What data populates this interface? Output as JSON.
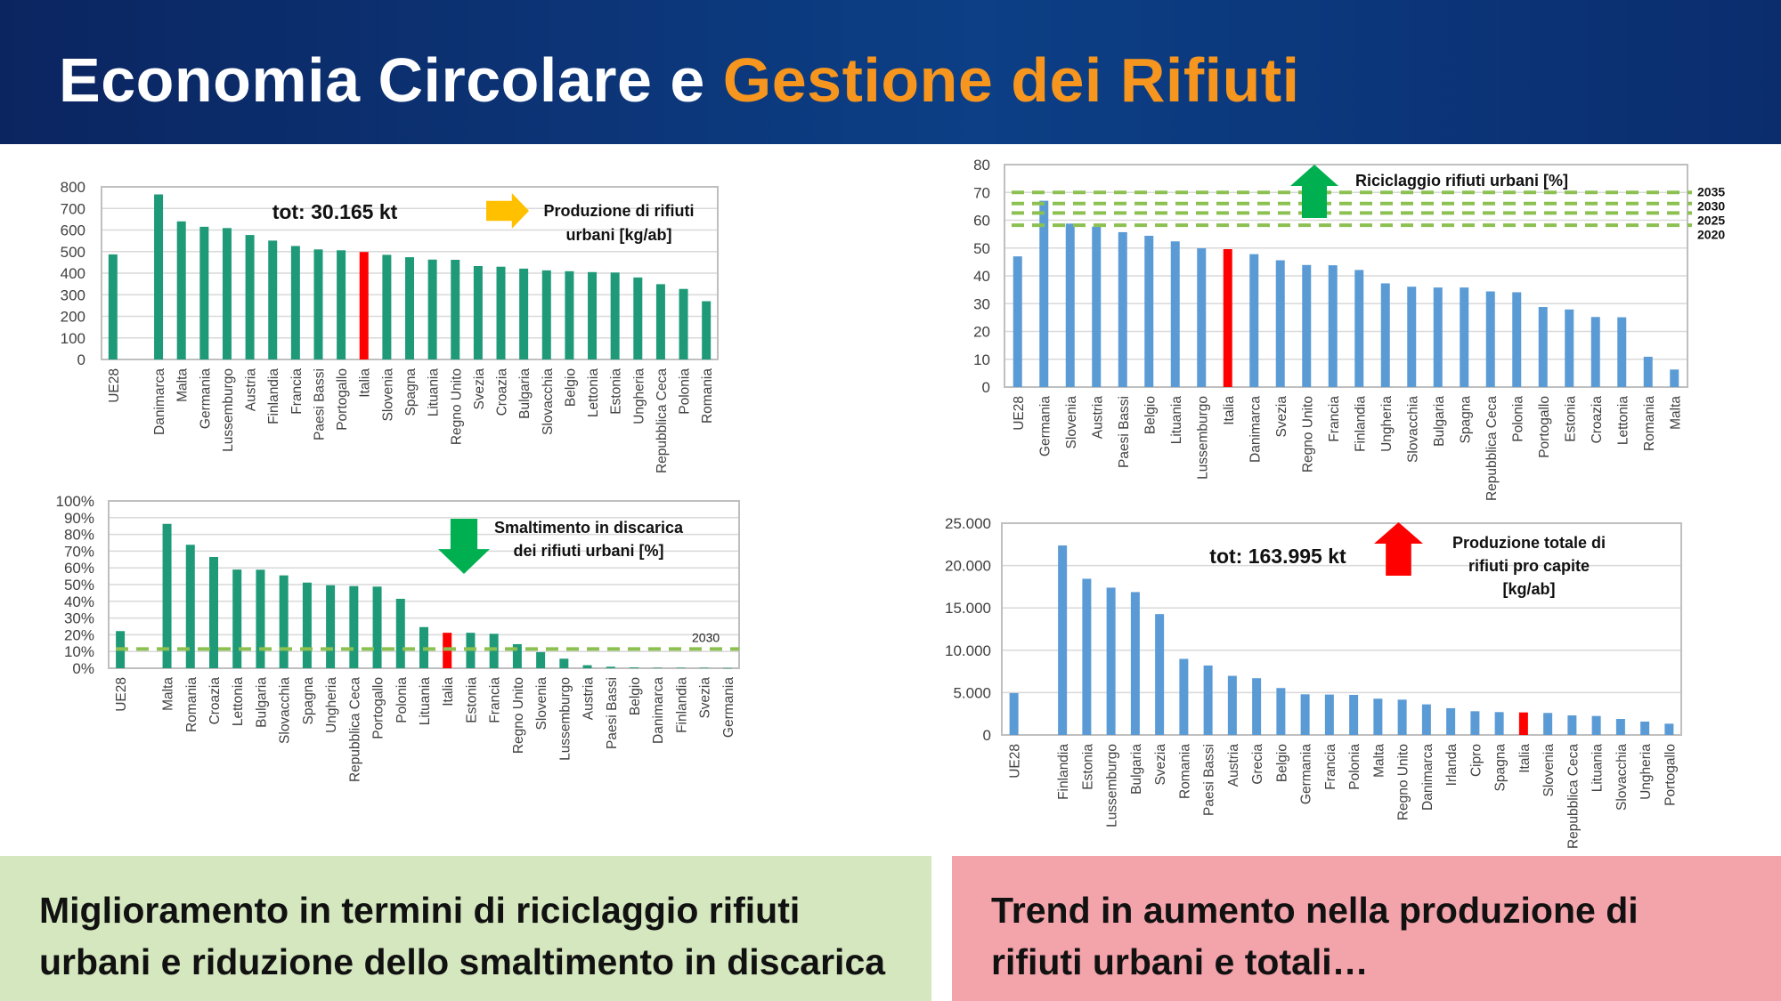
{
  "header": {
    "title_part1": "Economia Circolare e ",
    "title_part2": "Gestione dei Rifiuti",
    "accent_color": "#f7961e"
  },
  "bottom": {
    "left_lines": [
      "Miglioramento in termini di riciclaggio rifiuti",
      "urbani e riduzione dello smaltimento in discarica"
    ],
    "right_lines": [
      "Trend in aumento nella produzione di",
      "rifiuti urbani e totali…"
    ]
  },
  "chart_data": [
    {
      "type": "bar",
      "title": [
        "Produzione di rifiuti",
        "urbani [kg/ab]"
      ],
      "annotation": "tot: 30.165 kt",
      "arrow": {
        "direction": "right",
        "color": "#ffc000"
      },
      "ylim": [
        0,
        800
      ],
      "yticks": [
        "0",
        "100",
        "200",
        "300",
        "400",
        "500",
        "600",
        "700",
        "800"
      ],
      "bar_color": "#1f9a78",
      "highlight": "Italia",
      "highlight_color": "#ff0000",
      "categories": [
        "UE28",
        "Danimarca",
        "Malta",
        "Germania",
        "Lussemburgo",
        "Austria",
        "Finlandia",
        "Francia",
        "Paesi Bassi",
        "Portogallo",
        "Italia",
        "Slovenia",
        "Spagna",
        "Lituania",
        "Regno Unito",
        "Svezia",
        "Croazia",
        "Bulgaria",
        "Slovacchia",
        "Belgio",
        "Lettonia",
        "Estonia",
        "Ungheria",
        "Repubblica Ceca",
        "Polonia",
        "Romania"
      ],
      "values": [
        487,
        765,
        640,
        615,
        609,
        577,
        551,
        526,
        510,
        506,
        498,
        485,
        474,
        463,
        462,
        433,
        430,
        421,
        413,
        409,
        405,
        403,
        380,
        349,
        327,
        270
      ],
      "reference_lines": []
    },
    {
      "type": "bar",
      "title": [
        "Riciclaggio rifiuti urbani [%]"
      ],
      "annotation": "",
      "arrow": {
        "direction": "up",
        "color": "#00b050"
      },
      "ylim": [
        0,
        80
      ],
      "yticks": [
        "0",
        "10",
        "20",
        "30",
        "40",
        "50",
        "60",
        "70",
        "80"
      ],
      "bar_color": "#5b9bd5",
      "highlight": "Italia",
      "highlight_color": "#ff0000",
      "categories": [
        "UE28",
        "Germania",
        "Slovenia",
        "Austria",
        "Paesi Bassi",
        "Belgio",
        "Lituania",
        "Lussemburgo",
        "Italia",
        "Danimarca",
        "Svezia",
        "Regno Unito",
        "Francia",
        "Finlandia",
        "Ungheria",
        "Slovacchia",
        "Bulgaria",
        "Spagna",
        "Repubblica Ceca",
        "Polonia",
        "Portogallo",
        "Estonia",
        "Croazia",
        "Lettonia",
        "Romania",
        "Malta"
      ],
      "values": [
        47,
        67,
        58.8,
        57.7,
        55.7,
        54.4,
        52.4,
        49.9,
        49.6,
        47.8,
        45.6,
        43.9,
        43.8,
        42.1,
        37.3,
        36.1,
        35.8,
        35.8,
        34.4,
        34.1,
        28.8,
        27.9,
        25.2,
        25.1,
        10.9,
        6.3
      ],
      "reference_lines": [
        {
          "label": "2035",
          "value": 70
        },
        {
          "label": "2030",
          "value": 66
        },
        {
          "label": "2025",
          "value": 62.6
        },
        {
          "label": "2020",
          "value": 58.2
        }
      ],
      "reference_color": "#8cc152"
    },
    {
      "type": "bar",
      "title": [
        "Smaltimento in discarica",
        "dei rifiuti urbani [%]"
      ],
      "annotation": "",
      "arrow": {
        "direction": "down",
        "color": "#00b050"
      },
      "ylim": [
        0,
        100
      ],
      "yticks": [
        "0%",
        "10%",
        "20%",
        "30%",
        "40%",
        "50%",
        "60%",
        "70%",
        "80%",
        "90%",
        "100%"
      ],
      "bar_color": "#1f9a78",
      "highlight": "Italia",
      "highlight_color": "#ff0000",
      "categories": [
        "UE28",
        "Malta",
        "Romania",
        "Croazia",
        "Lettonia",
        "Bulgaria",
        "Slovacchia",
        "Spagna",
        "Ungheria",
        "Repubblica Ceca",
        "Portogallo",
        "Polonia",
        "Lituania",
        "Italia",
        "Estonia",
        "Francia",
        "Regno Unito",
        "Slovenia",
        "Lussemburgo",
        "Austria",
        "Paesi Bassi",
        "Belgio",
        "Danimarca",
        "Finlandia",
        "Svezia",
        "Germania"
      ],
      "values": [
        22.2,
        86.3,
        73.8,
        66.5,
        59,
        58.9,
        55.5,
        51.2,
        49.6,
        49.1,
        48.8,
        41.5,
        24.6,
        21.2,
        21.2,
        20.6,
        14.4,
        9.6,
        5.7,
        1.8,
        0.9,
        0.5,
        0.3,
        0.3,
        0.3,
        0.1
      ],
      "reference_lines": [
        {
          "label": "2030",
          "value": 11.5
        }
      ],
      "reference_color": "#8cc152"
    },
    {
      "type": "bar",
      "title": [
        "Produzione totale di",
        "rifiuti pro capite",
        "[kg/ab]"
      ],
      "annotation": "tot: 163.995 kt",
      "arrow": {
        "direction": "up",
        "color": "#ff0000"
      },
      "ylim": [
        0,
        25000
      ],
      "yticks": [
        "0",
        "5.000",
        "10.000",
        "15.000",
        "20.000",
        "25.000"
      ],
      "bar_color": "#5b9bd5",
      "highlight": "Italia",
      "highlight_color": "#ff0000",
      "categories": [
        "UE28",
        "Finlandia",
        "Estonia",
        "Lussemburgo",
        "Bulgaria",
        "Svezia",
        "Romania",
        "Paesi Bassi",
        "Austria",
        "Grecia",
        "Belgio",
        "Germania",
        "Francia",
        "Polonia",
        "Malta",
        "Regno Unito",
        "Danimarca",
        "Irlanda",
        "Cipro",
        "Spagna",
        "Italia",
        "Slovenia",
        "Repubblica Ceca",
        "Lituania",
        "Slovacchia",
        "Ungheria",
        "Portogallo"
      ],
      "values": [
        4944,
        22370,
        18440,
        17390,
        16870,
        14270,
        8980,
        8200,
        6980,
        6700,
        5540,
        4800,
        4770,
        4730,
        4280,
        4170,
        3610,
        3160,
        2800,
        2700,
        2660,
        2600,
        2310,
        2240,
        1890,
        1580,
        1330
      ],
      "reference_lines": []
    }
  ]
}
